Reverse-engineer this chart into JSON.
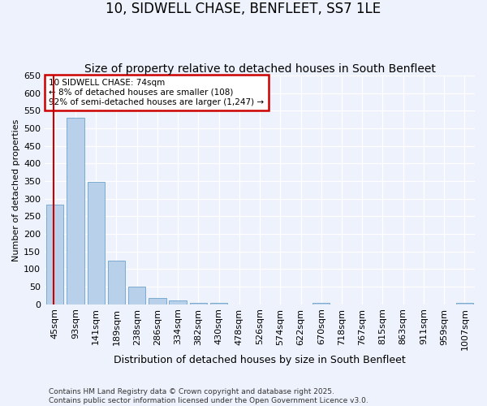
{
  "title": "10, SIDWELL CHASE, BENFLEET, SS7 1LE",
  "subtitle": "Size of property relative to detached houses in South Benfleet",
  "xlabel": "Distribution of detached houses by size in South Benfleet",
  "ylabel": "Number of detached properties",
  "categories": [
    "45sqm",
    "93sqm",
    "141sqm",
    "189sqm",
    "238sqm",
    "286sqm",
    "334sqm",
    "382sqm",
    "430sqm",
    "478sqm",
    "526sqm",
    "574sqm",
    "622sqm",
    "670sqm",
    "718sqm",
    "767sqm",
    "815sqm",
    "863sqm",
    "911sqm",
    "959sqm",
    "1007sqm"
  ],
  "values": [
    283,
    530,
    348,
    125,
    50,
    18,
    11,
    5,
    4,
    0,
    0,
    0,
    0,
    5,
    0,
    0,
    0,
    0,
    0,
    0,
    4
  ],
  "bar_color": "#b8d0ea",
  "bar_edge_color": "#7aabcf",
  "vline_color": "#cc0000",
  "annotation_text": "10 SIDWELL CHASE: 74sqm\n← 8% of detached houses are smaller (108)\n92% of semi-detached houses are larger (1,247) →",
  "annotation_box_color": "#ffffff",
  "annotation_box_edge": "#cc0000",
  "ylim": [
    0,
    650
  ],
  "yticks": [
    0,
    50,
    100,
    150,
    200,
    250,
    300,
    350,
    400,
    450,
    500,
    550,
    600,
    650
  ],
  "bg_color": "#eef2fc",
  "grid_color": "#ffffff",
  "footer": "Contains HM Land Registry data © Crown copyright and database right 2025.\nContains public sector information licensed under the Open Government Licence v3.0.",
  "title_fontsize": 12,
  "subtitle_fontsize": 10,
  "xlabel_fontsize": 9,
  "ylabel_fontsize": 8,
  "tick_fontsize": 8,
  "footer_fontsize": 6.5
}
